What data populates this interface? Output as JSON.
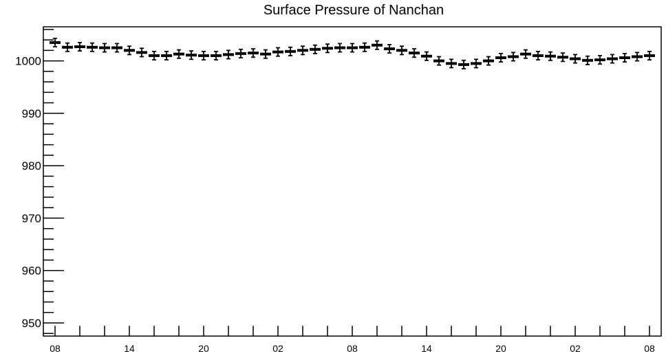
{
  "chart_data": {
    "type": "scatter",
    "title": "Surface Pressure of Nanchan",
    "xlabel": "",
    "ylabel": "",
    "ylim": [
      947.5,
      1006.5
    ],
    "x_tick_labels": [
      "08",
      "14",
      "20",
      "02",
      "08",
      "14",
      "20",
      "02",
      "08"
    ],
    "y_tick_labels": [
      "950",
      "960",
      "970",
      "980",
      "990",
      "1000"
    ],
    "y_ticks": [
      950,
      960,
      970,
      980,
      990,
      1000
    ],
    "grid": false,
    "marker_color": "#000000",
    "series": [
      {
        "x": [
          "08",
          "09",
          "10",
          "11",
          "12",
          "13",
          "14",
          "15",
          "16",
          "17",
          "18",
          "19",
          "20",
          "21",
          "22",
          "23",
          "00",
          "01",
          "02",
          "03",
          "04",
          "05",
          "06",
          "07",
          "08",
          "09",
          "10",
          "11",
          "12",
          "13",
          "14",
          "15",
          "16",
          "17",
          "18",
          "19",
          "20",
          "21",
          "22",
          "23",
          "00",
          "01",
          "02",
          "03",
          "04",
          "05",
          "06",
          "07",
          "08"
        ],
        "values": [
          1003.5,
          1002.6,
          1002.7,
          1002.6,
          1002.5,
          1002.5,
          1002.0,
          1001.6,
          1001.0,
          1001.0,
          1001.3,
          1001.1,
          1001.0,
          1001.0,
          1001.2,
          1001.4,
          1001.5,
          1001.3,
          1001.7,
          1001.8,
          1002.0,
          1002.2,
          1002.4,
          1002.5,
          1002.5,
          1002.6,
          1003.0,
          1002.3,
          1002.0,
          1001.5,
          1000.9,
          1000.0,
          999.5,
          999.3,
          999.5,
          1000.0,
          1000.6,
          1000.8,
          1001.3,
          1001.0,
          1000.9,
          1000.7,
          1000.4,
          1000.1,
          1000.2,
          1000.4,
          1000.6,
          1000.8,
          1001.0
        ],
        "error": 0.8
      }
    ]
  }
}
